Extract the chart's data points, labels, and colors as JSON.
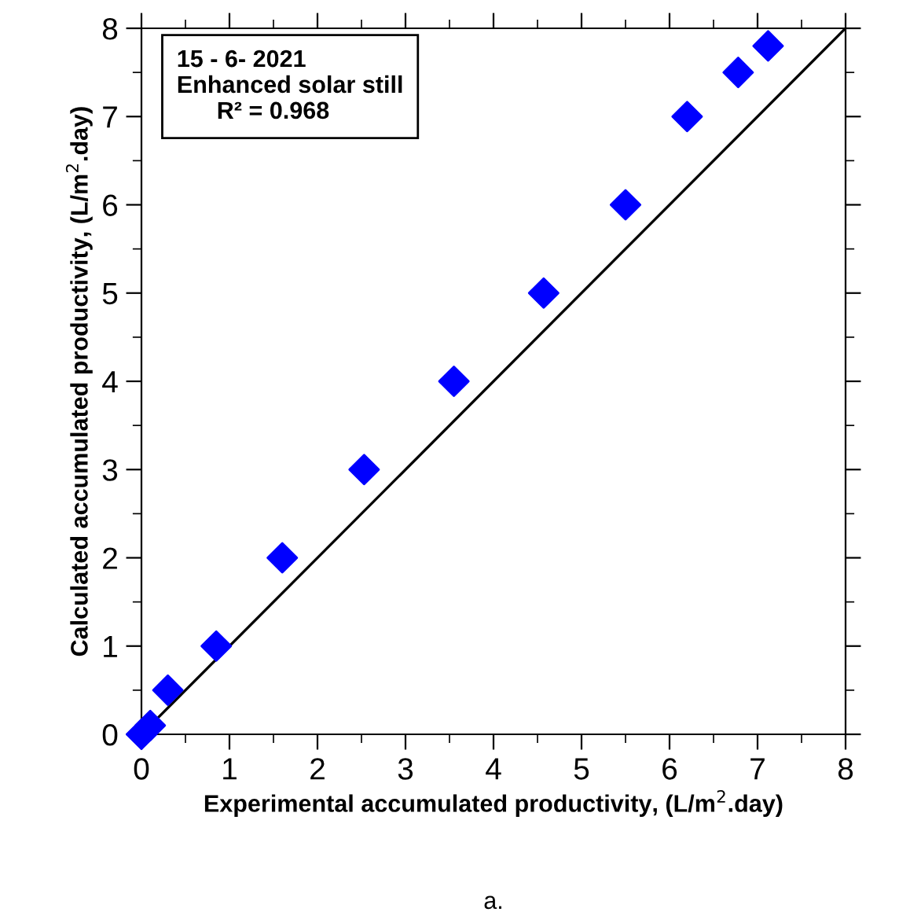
{
  "chart_data": {
    "type": "scatter",
    "xlabel": "Experimental accumulated productivity, (L/m$^{2}$.day)",
    "ylabel": "Calculated accumulated productivity, (L/m$^{2}$.day)",
    "annotations": [
      "15 - 6- 2021\nEnhanced solar still\n      R² = 0.968",
      "a."
    ],
    "series": [
      {
        "color": "#0000ff",
        "marker": "diamond",
        "x": [
          0,
          0.1,
          0.3,
          0.85,
          1.6,
          2.53,
          3.55,
          4.57,
          5.5,
          6.2,
          6.78,
          7.12
        ],
        "values": [
          0,
          0.1,
          0.5,
          1,
          2,
          3,
          4,
          5,
          6,
          7,
          7.5,
          7.8
        ]
      },
      {
        "type": "line",
        "color": "#000000",
        "marker": "none",
        "x": [
          0,
          8
        ],
        "values": [
          0,
          8
        ]
      }
    ],
    "xlim": [
      0,
      8
    ],
    "ylim": [
      0,
      8
    ],
    "xticks": [
      0,
      1,
      2,
      3,
      4,
      5,
      6,
      7,
      8
    ],
    "yticks": [
      0,
      1,
      2,
      3,
      4,
      5,
      6,
      7,
      8
    ],
    "grid": false,
    "legend": false
  }
}
